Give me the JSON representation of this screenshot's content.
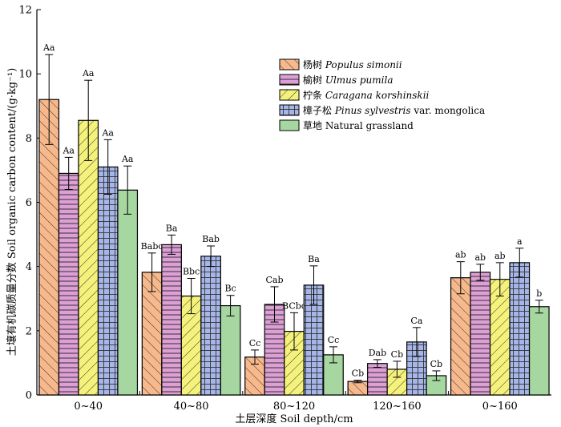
{
  "chart_data": {
    "type": "bar",
    "xlabel": "土层深度 Soil depth/cm",
    "ylabel": "土壤有机碳质量分数 Soil organic carbon content/(g·kg⁻¹)",
    "ylim": [
      0,
      12
    ],
    "yticks": [
      0,
      2,
      4,
      6,
      8,
      10,
      12
    ],
    "grid": false,
    "legend_position": "top-right",
    "categories": [
      "0~40",
      "40~80",
      "80~120",
      "120~160",
      "0~160"
    ],
    "series": [
      {
        "name": "杨树 Populus simonii",
        "cn": "杨树",
        "latin": "Populus simonii",
        "extra": "",
        "color": "#F7B98C",
        "pattern": "diag-right",
        "values": [
          9.2,
          3.82,
          1.18,
          0.42,
          3.65
        ],
        "errors": [
          1.4,
          0.6,
          0.22,
          0.04,
          0.5
        ],
        "labels": [
          "Aa",
          "Babc",
          "Cc",
          "Cb",
          "ab"
        ]
      },
      {
        "name": "榆树 Ulmus pumila",
        "cn": "榆树",
        "latin": "Ulmus pumila",
        "extra": "",
        "color": "#DD9FD6",
        "pattern": "horizontal",
        "values": [
          6.9,
          4.68,
          2.82,
          0.98,
          3.82
        ],
        "errors": [
          0.5,
          0.3,
          0.55,
          0.12,
          0.25
        ],
        "labels": [
          "Aa",
          "Ba",
          "Cab",
          "Dab",
          "ab"
        ]
      },
      {
        "name": "柠条 Caragana korshinskii",
        "cn": "柠条",
        "latin": "Caragana korshinskii",
        "extra": "",
        "color": "#F5F27C",
        "pattern": "diag-left",
        "values": [
          8.55,
          3.08,
          1.98,
          0.8,
          3.6
        ],
        "errors": [
          1.25,
          0.55,
          0.58,
          0.25,
          0.52
        ],
        "labels": [
          "Aa",
          "Bbc",
          "BCbc",
          "Cb",
          "ab"
        ]
      },
      {
        "name": "樟子松 Pinus sylvestris var. mongolica",
        "cn": "樟子松",
        "latin": "Pinus sylvestris",
        "extra": " var. mongolica",
        "color": "#A6B6E8",
        "pattern": "grid",
        "values": [
          7.1,
          4.32,
          3.42,
          1.65,
          4.12
        ],
        "errors": [
          0.85,
          0.32,
          0.6,
          0.45,
          0.45
        ],
        "labels": [
          "Aa",
          "Bab",
          "Ba",
          "Ca",
          "a"
        ]
      },
      {
        "name": "草地 Natural grassland",
        "cn": "草地",
        "latin": "",
        "extra": "Natural grassland",
        "color": "#A7D7A0",
        "pattern": "none",
        "values": [
          6.38,
          2.78,
          1.25,
          0.6,
          2.75
        ],
        "errors": [
          0.75,
          0.32,
          0.25,
          0.15,
          0.2
        ],
        "labels": [
          "Aa",
          "Bc",
          "Cc",
          "Cb",
          "b"
        ]
      }
    ]
  }
}
